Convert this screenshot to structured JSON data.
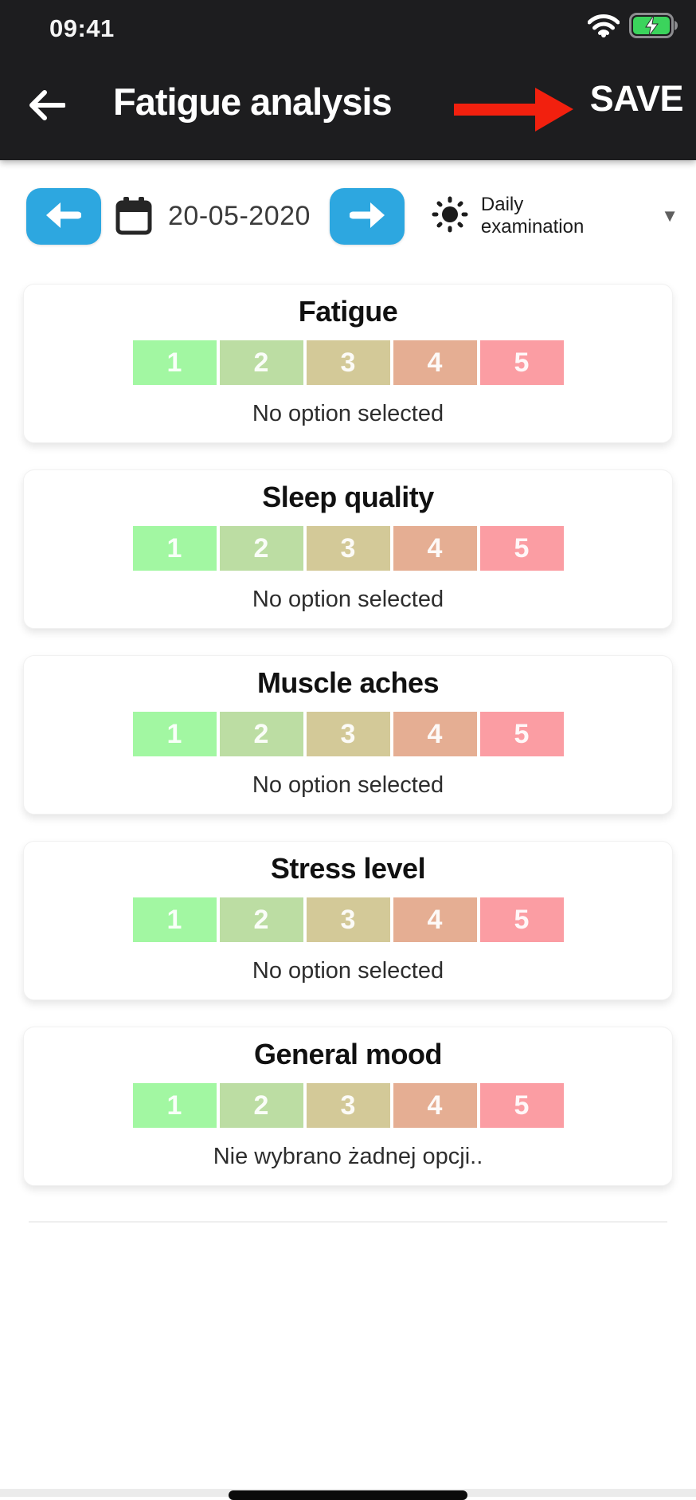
{
  "status_bar": {
    "time": "09:41"
  },
  "header": {
    "title": "Fatigue analysis",
    "save_label": "SAVE"
  },
  "toolbar": {
    "date": "20-05-2020",
    "mode_line1": "Daily",
    "mode_line2": "examination",
    "dropdown_glyph": "▼"
  },
  "scale": {
    "labels": [
      "1",
      "2",
      "3",
      "4",
      "5"
    ],
    "colors": [
      "#a2f7a2",
      "#bcdda3",
      "#d3c998",
      "#e5ae93",
      "#fb9da3"
    ]
  },
  "cards": [
    {
      "title": "Fatigue",
      "status": "No option selected"
    },
    {
      "title": "Sleep quality",
      "status": "No option selected"
    },
    {
      "title": "Muscle aches",
      "status": "No option selected"
    },
    {
      "title": "Stress level",
      "status": "No option selected"
    },
    {
      "title": "General mood",
      "status": "Nie wybrano żadnej opcji.."
    }
  ],
  "colors": {
    "header_bg": "#1d1d1f",
    "accent_blue": "#2da7e0",
    "annotation_red": "#f2200e",
    "battery_green": "#3bd45c"
  }
}
